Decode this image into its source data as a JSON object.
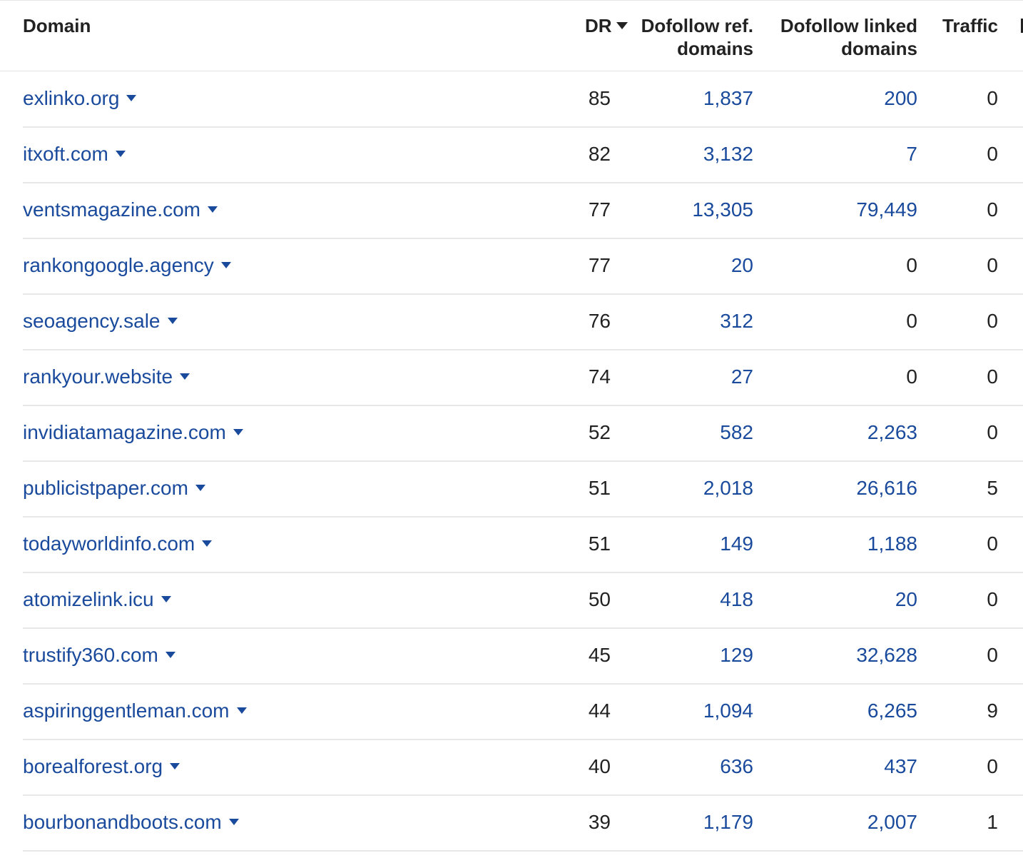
{
  "table": {
    "headers": {
      "domain": "Domain",
      "dr": "DR",
      "ref_line1": "Dofollow ref.",
      "ref_line2": "domains",
      "linked_line1": "Dofollow linked",
      "linked_line2": "domains",
      "traffic": "Traffic"
    },
    "sort": {
      "column": "DR",
      "direction": "descending",
      "icon": "sort-desc-icon"
    },
    "link_color": "#1a4a9c",
    "rows": [
      {
        "domain": "exlinko.org",
        "dr": "85",
        "ref": "1,837",
        "linked": "200",
        "traffic": "0"
      },
      {
        "domain": "itxoft.com",
        "dr": "82",
        "ref": "3,132",
        "linked": "7",
        "traffic": "0"
      },
      {
        "domain": "ventsmagazine.com",
        "dr": "77",
        "ref": "13,305",
        "linked": "79,449",
        "traffic": "0"
      },
      {
        "domain": "rankongoogle.agency",
        "dr": "77",
        "ref": "20",
        "linked": "0",
        "traffic": "0"
      },
      {
        "domain": "seoagency.sale",
        "dr": "76",
        "ref": "312",
        "linked": "0",
        "traffic": "0"
      },
      {
        "domain": "rankyour.website",
        "dr": "74",
        "ref": "27",
        "linked": "0",
        "traffic": "0"
      },
      {
        "domain": "invidiatamagazine.com",
        "dr": "52",
        "ref": "582",
        "linked": "2,263",
        "traffic": "0"
      },
      {
        "domain": "publicistpaper.com",
        "dr": "51",
        "ref": "2,018",
        "linked": "26,616",
        "traffic": "5"
      },
      {
        "domain": "todayworldinfo.com",
        "dr": "51",
        "ref": "149",
        "linked": "1,188",
        "traffic": "0"
      },
      {
        "domain": "atomizelink.icu",
        "dr": "50",
        "ref": "418",
        "linked": "20",
        "traffic": "0"
      },
      {
        "domain": "trustify360.com",
        "dr": "45",
        "ref": "129",
        "linked": "32,628",
        "traffic": "0"
      },
      {
        "domain": "aspiringgentleman.com",
        "dr": "44",
        "ref": "1,094",
        "linked": "6,265",
        "traffic": "9"
      },
      {
        "domain": "borealforest.org",
        "dr": "40",
        "ref": "636",
        "linked": "437",
        "traffic": "0"
      },
      {
        "domain": "bourbonandboots.com",
        "dr": "39",
        "ref": "1,179",
        "linked": "2,007",
        "traffic": "1"
      }
    ]
  }
}
